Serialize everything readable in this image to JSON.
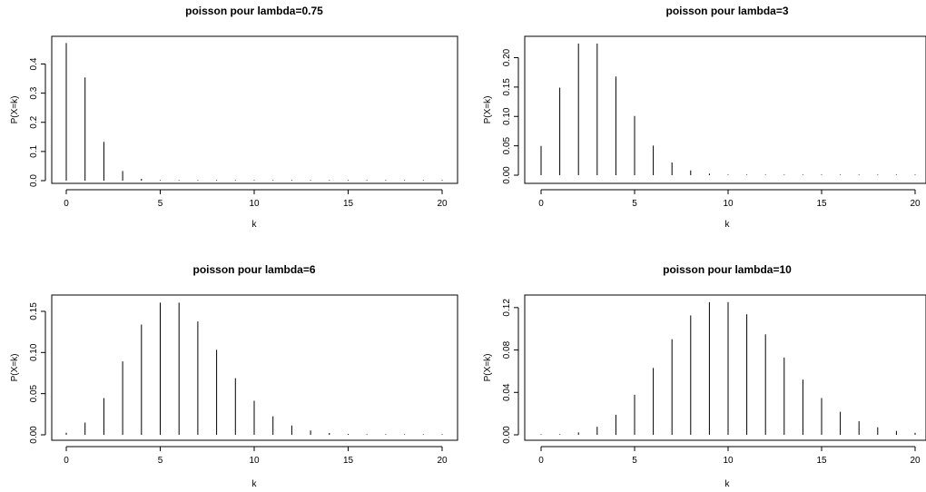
{
  "chart_data": [
    {
      "type": "bar",
      "title": "poisson pour lambda=0.75",
      "xlabel": "k",
      "ylabel": "P(X=k)",
      "xlim": [
        0,
        20
      ],
      "ylim": [
        0,
        0.47
      ],
      "xticks": [
        0,
        5,
        10,
        15,
        20
      ],
      "xtick_labels": [
        "0",
        "5",
        "10",
        "15",
        "20"
      ],
      "yticks": [
        0,
        0.1,
        0.2,
        0.3,
        0.4
      ],
      "ytick_labels": [
        "0.0",
        "0.1",
        "0.2",
        "0.3",
        "0.4"
      ],
      "grid": false,
      "x": [
        0,
        1,
        2,
        3,
        4,
        5,
        6,
        7,
        8,
        9,
        10,
        11,
        12,
        13,
        14,
        15,
        16,
        17,
        18,
        19,
        20
      ],
      "values": [
        0.472,
        0.354,
        0.133,
        0.033,
        0.0062,
        0.0009,
        0.0001,
        0,
        0,
        0,
        0,
        0,
        0,
        0,
        0,
        0,
        0,
        0,
        0,
        0,
        0
      ]
    },
    {
      "type": "bar",
      "title": "poisson pour lambda=3",
      "xlabel": "k",
      "ylabel": "P(X=k)",
      "xlim": [
        0,
        20
      ],
      "ylim": [
        0,
        0.224
      ],
      "xticks": [
        0,
        5,
        10,
        15,
        20
      ],
      "xtick_labels": [
        "0",
        "5",
        "10",
        "15",
        "20"
      ],
      "yticks": [
        0,
        0.05,
        0.1,
        0.15,
        0.2
      ],
      "ytick_labels": [
        "0.00",
        "0.05",
        "0.10",
        "0.15",
        "0.20"
      ],
      "grid": false,
      "x": [
        0,
        1,
        2,
        3,
        4,
        5,
        6,
        7,
        8,
        9,
        10,
        11,
        12,
        13,
        14,
        15,
        16,
        17,
        18,
        19,
        20
      ],
      "values": [
        0.0498,
        0.149,
        0.224,
        0.224,
        0.168,
        0.1008,
        0.0504,
        0.0216,
        0.0081,
        0.0027,
        0.0008,
        0.0002,
        0.0001,
        0,
        0,
        0,
        0,
        0,
        0,
        0,
        0
      ]
    },
    {
      "type": "bar",
      "title": "poisson pour lambda=6",
      "xlabel": "k",
      "ylabel": "P(X=k)",
      "xlim": [
        0,
        20
      ],
      "ylim": [
        0,
        0.161
      ],
      "xticks": [
        0,
        5,
        10,
        15,
        20
      ],
      "xtick_labels": [
        "0",
        "5",
        "10",
        "15",
        "20"
      ],
      "yticks": [
        0,
        0.05,
        0.1,
        0.15
      ],
      "ytick_labels": [
        "0.00",
        "0.05",
        "0.10",
        "0.15"
      ],
      "grid": false,
      "x": [
        0,
        1,
        2,
        3,
        4,
        5,
        6,
        7,
        8,
        9,
        10,
        11,
        12,
        13,
        14,
        15,
        16,
        17,
        18,
        19,
        20
      ],
      "values": [
        0.0025,
        0.0149,
        0.0446,
        0.0892,
        0.1339,
        0.1606,
        0.1606,
        0.1377,
        0.1033,
        0.0688,
        0.0413,
        0.0225,
        0.0113,
        0.0052,
        0.0022,
        0.0009,
        0.0003,
        0.0001,
        0,
        0,
        0
      ]
    },
    {
      "type": "bar",
      "title": "poisson  pour lambda=10",
      "xlabel": "k",
      "ylabel": "P(X=k)",
      "xlim": [
        0,
        20
      ],
      "ylim": [
        0,
        0.125
      ],
      "xticks": [
        0,
        5,
        10,
        15,
        20
      ],
      "xtick_labels": [
        "0",
        "5",
        "10",
        "15",
        "20"
      ],
      "yticks": [
        0,
        0.04,
        0.08,
        0.12
      ],
      "ytick_labels": [
        "0.00",
        "0.04",
        "0.08",
        "0.12"
      ],
      "grid": false,
      "x": [
        0,
        1,
        2,
        3,
        4,
        5,
        6,
        7,
        8,
        9,
        10,
        11,
        12,
        13,
        14,
        15,
        16,
        17,
        18,
        19,
        20
      ],
      "values": [
        0.0,
        0.0005,
        0.0023,
        0.0076,
        0.0189,
        0.0378,
        0.0631,
        0.0901,
        0.1126,
        0.1251,
        0.1251,
        0.1137,
        0.0948,
        0.0729,
        0.0521,
        0.0347,
        0.0217,
        0.0128,
        0.0071,
        0.0037,
        0.0019
      ]
    }
  ]
}
